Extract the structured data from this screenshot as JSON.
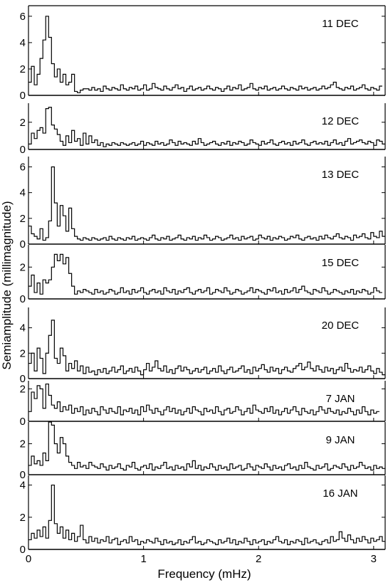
{
  "chart_data": {
    "type": "line",
    "xlabel": "Frequency (mHz)",
    "ylabel": "Semiamplitude (millimagnitude)",
    "xlim": [
      0,
      3.1
    ],
    "x_ticks": [
      0,
      1,
      2,
      3
    ],
    "x_tick_labels": [
      "0",
      "1",
      "2",
      "3"
    ],
    "bin_width_mHz": 0.025,
    "step_style": "histogram",
    "panels": [
      {
        "label": "11 DEC",
        "ylim": [
          0,
          6.8
        ],
        "y_ticks": [
          0,
          2,
          4,
          6
        ],
        "values": [
          1.0,
          2.2,
          0.8,
          1.6,
          2.8,
          4.2,
          6.0,
          4.4,
          2.4,
          1.4,
          2.0,
          1.0,
          1.6,
          0.8,
          1.0,
          1.6,
          0.3,
          0.2,
          0.4,
          0.5,
          0.5,
          0.4,
          0.6,
          0.4,
          0.5,
          0.3,
          0.7,
          0.5,
          0.4,
          0.6,
          0.5,
          0.4,
          0.8,
          0.5,
          0.4,
          0.6,
          0.5,
          0.7,
          0.4,
          0.5,
          0.8,
          0.4,
          0.5,
          0.9,
          0.6,
          0.5,
          0.4,
          0.7,
          0.5,
          0.4,
          0.6,
          0.8,
          0.5,
          0.6,
          0.3,
          0.5,
          0.7,
          0.4,
          0.5,
          0.6,
          0.4,
          0.5,
          0.7,
          0.5,
          0.4,
          0.6,
          0.5,
          0.3,
          0.5,
          0.7,
          0.4,
          0.6,
          0.5,
          0.8,
          0.4,
          0.5,
          0.6,
          0.9,
          0.5,
          0.4,
          0.6,
          0.5,
          0.7,
          0.4,
          0.5,
          0.6,
          0.4,
          0.5,
          0.7,
          0.5,
          0.4,
          0.6,
          0.5,
          0.4,
          0.7,
          0.5,
          0.6,
          0.4,
          0.5,
          0.6,
          0.4,
          0.5,
          0.7,
          0.5,
          0.6,
          0.8,
          1.0,
          0.6,
          0.5,
          0.4,
          0.6,
          0.5,
          0.7,
          0.4,
          0.5,
          0.6,
          0.8,
          0.5,
          0.4,
          0.6,
          0.5,
          0.4,
          0.7
        ]
      },
      {
        "label": "12 DEC",
        "ylim": [
          0,
          3.4
        ],
        "y_ticks": [
          0,
          2
        ],
        "values": [
          0.4,
          1.2,
          0.8,
          1.4,
          1.6,
          1.2,
          3.0,
          3.1,
          1.8,
          1.5,
          1.1,
          0.6,
          0.3,
          1.0,
          0.5,
          1.4,
          0.6,
          0.8,
          0.3,
          1.2,
          0.4,
          1.0,
          0.5,
          0.7,
          0.3,
          0.5,
          0.2,
          0.4,
          0.3,
          0.5,
          0.4,
          0.3,
          0.5,
          0.4,
          0.3,
          0.4,
          0.5,
          0.3,
          0.4,
          0.6,
          0.3,
          0.5,
          0.4,
          0.3,
          0.6,
          0.4,
          0.5,
          0.3,
          0.4,
          0.7,
          0.5,
          0.3,
          0.6,
          0.4,
          0.5,
          0.4,
          0.3,
          0.6,
          0.4,
          0.8,
          0.5,
          0.3,
          0.4,
          0.5,
          0.6,
          0.4,
          0.3,
          0.5,
          0.4,
          0.6,
          0.3,
          0.5,
          0.4,
          0.6,
          0.5,
          0.3,
          0.4,
          0.7,
          0.5,
          0.4,
          0.3,
          0.6,
          0.4,
          0.5,
          0.7,
          0.4,
          0.3,
          0.5,
          0.6,
          0.4,
          0.5,
          0.3,
          0.6,
          0.4,
          0.5,
          0.7,
          0.4,
          0.3,
          0.5,
          0.6,
          0.4,
          0.5,
          0.4,
          0.6,
          0.3,
          0.5,
          0.7,
          0.4,
          0.5,
          0.3,
          0.6,
          0.8,
          0.4,
          0.5,
          0.6,
          0.7,
          0.5,
          0.4,
          0.6,
          0.5,
          0.3,
          0.7,
          0.6,
          0.4
        ]
      },
      {
        "label": "13 DEC",
        "ylim": [
          0,
          6.8
        ],
        "y_ticks": [
          0,
          2,
          4,
          6
        ],
        "values": [
          1.4,
          0.8,
          0.6,
          0.4,
          1.2,
          0.3,
          0.5,
          1.8,
          6.0,
          3.2,
          1.4,
          3.0,
          2.2,
          1.0,
          2.8,
          1.2,
          0.6,
          0.4,
          0.3,
          0.5,
          0.4,
          0.3,
          0.5,
          0.4,
          0.3,
          0.4,
          0.5,
          0.3,
          0.6,
          0.4,
          0.3,
          0.5,
          0.4,
          0.3,
          0.5,
          0.4,
          0.6,
          0.3,
          0.4,
          0.5,
          0.4,
          0.3,
          0.5,
          0.7,
          0.4,
          0.3,
          0.5,
          0.4,
          0.6,
          0.3,
          0.4,
          0.5,
          0.7,
          0.4,
          0.3,
          0.5,
          0.4,
          0.6,
          0.3,
          0.5,
          0.4,
          0.7,
          0.5,
          0.3,
          0.4,
          0.6,
          0.5,
          0.3,
          0.4,
          0.5,
          0.7,
          0.4,
          0.5,
          0.3,
          0.6,
          0.4,
          0.5,
          0.6,
          0.3,
          0.4,
          0.7,
          0.5,
          0.4,
          0.6,
          0.3,
          0.5,
          0.4,
          0.6,
          0.5,
          0.3,
          0.4,
          0.6,
          0.5,
          0.7,
          0.4,
          0.3,
          0.5,
          0.6,
          0.4,
          0.5,
          0.3,
          0.6,
          0.4,
          0.7,
          0.5,
          0.4,
          0.6,
          0.8,
          0.5,
          0.4,
          0.6,
          0.5,
          0.3,
          0.7,
          0.5,
          0.6,
          0.8,
          0.5,
          0.4,
          0.9,
          0.6,
          0.5,
          1.0,
          0.6
        ]
      },
      {
        "label": "15 DEC",
        "ylim": [
          0,
          3.4
        ],
        "y_ticks": [
          0,
          2
        ],
        "values": [
          0.8,
          1.5,
          0.4,
          1.0,
          0.3,
          1.2,
          1.0,
          1.2,
          2.0,
          2.8,
          2.4,
          2.8,
          2.2,
          2.6,
          1.6,
          0.8,
          0.3,
          0.5,
          0.4,
          0.6,
          0.5,
          0.4,
          0.3,
          0.6,
          0.4,
          0.5,
          0.3,
          0.4,
          0.6,
          0.5,
          0.3,
          0.4,
          0.7,
          0.4,
          0.5,
          0.3,
          0.6,
          0.4,
          0.5,
          0.7,
          0.4,
          0.3,
          0.5,
          0.6,
          0.4,
          0.5,
          0.3,
          0.7,
          0.5,
          0.4,
          0.6,
          0.3,
          0.5,
          0.4,
          0.6,
          0.7,
          0.4,
          0.3,
          0.5,
          0.6,
          0.4,
          0.5,
          0.7,
          0.3,
          0.4,
          0.6,
          0.5,
          0.4,
          0.7,
          0.5,
          0.3,
          0.4,
          0.6,
          0.5,
          0.3,
          0.4,
          0.5,
          0.7,
          0.4,
          0.6,
          0.5,
          0.4,
          0.3,
          0.6,
          0.5,
          0.7,
          0.4,
          0.5,
          0.3,
          0.6,
          0.4,
          0.5,
          0.7,
          0.4,
          0.6,
          0.8,
          0.5,
          0.4,
          0.3,
          0.6,
          0.5,
          0.4,
          0.7,
          0.5,
          0.3,
          0.4,
          0.6,
          0.5,
          0.4,
          0.3,
          0.5,
          0.4,
          0.6,
          0.3,
          0.5,
          0.4,
          0.6,
          0.5,
          0.3,
          0.4,
          0.7,
          0.5,
          0.4
        ]
      },
      {
        "label": "20 DEC",
        "ylim": [
          0,
          5.6
        ],
        "y_ticks": [
          0,
          2,
          4
        ],
        "values": [
          1.2,
          2.0,
          0.6,
          2.4,
          1.6,
          0.4,
          2.0,
          3.4,
          4.6,
          1.6,
          1.2,
          2.4,
          1.8,
          0.6,
          1.2,
          0.8,
          1.4,
          0.6,
          1.0,
          0.4,
          0.9,
          0.5,
          0.6,
          0.3,
          0.7,
          0.5,
          0.8,
          0.4,
          0.6,
          0.9,
          0.5,
          0.7,
          1.0,
          0.4,
          0.6,
          0.8,
          0.5,
          0.9,
          0.6,
          0.3,
          0.7,
          1.2,
          0.6,
          0.9,
          1.4,
          0.8,
          0.6,
          1.0,
          0.5,
          0.7,
          0.4,
          0.8,
          1.0,
          0.6,
          0.9,
          0.7,
          0.4,
          0.6,
          0.8,
          0.5,
          0.7,
          0.9,
          0.4,
          0.6,
          0.8,
          0.5,
          1.0,
          0.6,
          0.4,
          0.7,
          0.9,
          0.5,
          0.6,
          0.8,
          1.0,
          0.5,
          0.7,
          0.4,
          0.9,
          0.6,
          0.8,
          1.1,
          0.7,
          0.5,
          0.9,
          0.6,
          0.8,
          0.4,
          0.7,
          0.9,
          0.6,
          0.5,
          0.8,
          1.0,
          1.2,
          0.7,
          0.9,
          1.3,
          0.8,
          0.6,
          1.0,
          0.7,
          0.5,
          0.9,
          0.6,
          0.8,
          0.4,
          0.7,
          0.9,
          0.6,
          1.2,
          0.8,
          0.5,
          0.7,
          0.6,
          0.9,
          0.5,
          0.7,
          1.0,
          0.6,
          0.4,
          0.8,
          0.5,
          0.3
        ]
      },
      {
        "label": "7 JAN",
        "ylim": [
          0,
          2.5
        ],
        "y_ticks": [
          0,
          2
        ],
        "values": [
          0.6,
          1.8,
          1.4,
          2.2,
          2.0,
          0.8,
          2.3,
          1.6,
          1.0,
          0.8,
          1.2,
          0.6,
          0.9,
          0.7,
          1.0,
          0.5,
          0.8,
          0.6,
          0.9,
          0.4,
          0.7,
          0.5,
          0.8,
          0.6,
          0.4,
          0.9,
          0.7,
          0.5,
          0.8,
          0.6,
          0.5,
          0.9,
          0.4,
          0.7,
          0.6,
          0.8,
          0.5,
          0.7,
          0.4,
          0.9,
          0.6,
          1.0,
          0.7,
          0.5,
          0.8,
          0.6,
          0.4,
          0.7,
          0.9,
          0.6,
          0.8,
          0.5,
          0.7,
          0.4,
          0.6,
          0.8,
          0.5,
          0.9,
          0.7,
          0.6,
          0.4,
          0.8,
          0.6,
          0.7,
          0.5,
          0.9,
          0.6,
          0.4,
          0.7,
          0.8,
          0.5,
          0.6,
          0.9,
          0.7,
          0.4,
          0.6,
          0.8,
          0.5,
          1.0,
          0.7,
          0.6,
          0.5,
          0.8,
          0.6,
          0.9,
          0.5,
          0.7,
          0.4,
          0.6,
          0.8,
          0.5,
          0.7,
          0.9,
          0.6,
          0.4,
          0.8,
          0.6,
          0.5,
          0.7,
          0.4,
          0.6,
          0.9,
          0.7,
          0.5,
          0.8,
          0.6,
          0.5,
          0.7,
          0.4,
          0.6,
          0.5,
          0.8,
          0.6,
          0.4,
          0.7,
          0.5,
          0.9,
          0.6,
          0.4,
          0.7,
          0.5,
          0.6
        ]
      },
      {
        "label": "9 JAN",
        "ylim": [
          0,
          3.4
        ],
        "y_ticks": [
          0,
          2
        ],
        "values": [
          0.6,
          1.2,
          0.7,
          0.9,
          0.6,
          1.4,
          0.9,
          3.4,
          3.2,
          2.0,
          1.4,
          2.4,
          2.0,
          1.2,
          0.8,
          0.6,
          0.4,
          0.8,
          0.5,
          0.6,
          0.4,
          0.8,
          0.6,
          0.5,
          0.4,
          0.7,
          0.5,
          0.3,
          0.6,
          0.4,
          0.5,
          0.7,
          0.4,
          0.3,
          0.6,
          0.5,
          0.8,
          0.4,
          0.3,
          0.5,
          0.6,
          0.4,
          0.7,
          0.3,
          0.5,
          0.4,
          0.6,
          0.8,
          0.4,
          0.5,
          0.3,
          0.6,
          0.4,
          0.5,
          0.3,
          0.7,
          0.5,
          0.9,
          0.4,
          0.6,
          0.3,
          0.5,
          0.4,
          0.7,
          0.5,
          0.3,
          0.6,
          0.4,
          0.5,
          0.3,
          0.7,
          0.4,
          0.5,
          0.6,
          0.3,
          0.4,
          0.7,
          0.5,
          0.3,
          0.6,
          0.5,
          0.4,
          0.7,
          0.5,
          0.3,
          0.6,
          0.4,
          0.5,
          0.3,
          0.6,
          0.7,
          0.4,
          0.5,
          0.3,
          0.6,
          0.4,
          0.8,
          0.5,
          0.4,
          0.3,
          0.6,
          0.4,
          0.5,
          0.7,
          0.3,
          0.4,
          0.6,
          0.5,
          0.4,
          0.7,
          0.5,
          0.3,
          0.6,
          0.4,
          0.5,
          0.8,
          0.6,
          0.4,
          0.5,
          0.3,
          0.6,
          0.4,
          0.5,
          0.4
        ]
      },
      {
        "label": "16 JAN",
        "ylim": [
          0,
          4.6
        ],
        "y_ticks": [
          0,
          2,
          4
        ],
        "values": [
          0.6,
          1.0,
          0.7,
          1.2,
          0.8,
          1.4,
          0.7,
          1.8,
          4.0,
          1.6,
          1.0,
          1.4,
          0.7,
          1.2,
          0.6,
          1.0,
          0.5,
          0.8,
          1.5,
          0.6,
          0.4,
          0.8,
          0.5,
          0.7,
          0.4,
          0.6,
          0.5,
          0.8,
          0.4,
          0.6,
          0.7,
          0.3,
          0.5,
          0.6,
          0.4,
          0.8,
          0.5,
          0.6,
          0.3,
          0.5,
          0.4,
          0.6,
          0.5,
          0.4,
          0.7,
          0.5,
          0.3,
          0.6,
          0.4,
          0.5,
          0.3,
          0.4,
          0.6,
          0.3,
          0.5,
          0.4,
          0.6,
          0.8,
          0.4,
          0.5,
          0.3,
          0.4,
          0.6,
          0.5,
          0.4,
          0.3,
          0.6,
          0.4,
          0.5,
          0.7,
          0.4,
          0.6,
          0.3,
          0.5,
          0.4,
          0.7,
          0.5,
          0.3,
          0.6,
          0.4,
          0.5,
          0.6,
          0.3,
          0.5,
          0.4,
          0.6,
          0.8,
          0.5,
          0.4,
          0.6,
          0.3,
          0.5,
          0.4,
          0.6,
          0.5,
          0.3,
          0.7,
          0.4,
          0.5,
          0.6,
          0.4,
          0.3,
          0.5,
          0.6,
          0.4,
          0.8,
          0.5,
          0.6,
          1.1,
          0.7,
          0.5,
          0.9,
          0.6,
          0.4,
          0.7,
          0.5,
          0.8,
          0.6,
          0.4,
          0.7,
          0.5,
          0.6,
          0.8,
          0.5
        ]
      }
    ]
  }
}
